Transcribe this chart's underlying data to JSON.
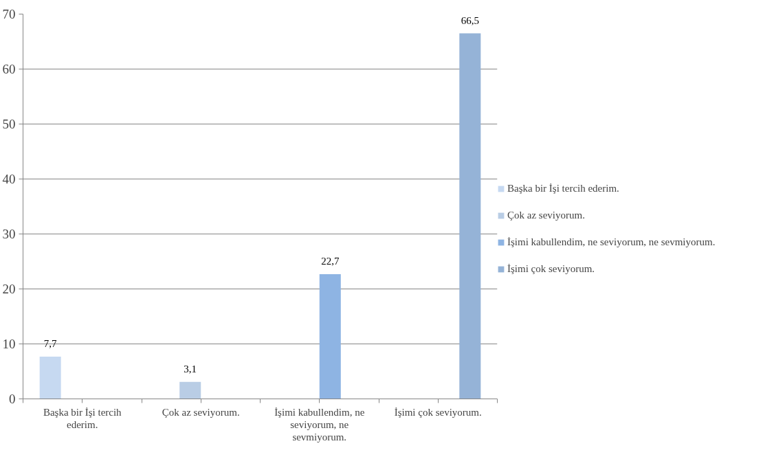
{
  "chart_data": {
    "type": "bar",
    "categories": [
      "Başka bir İşi tercih ederim.",
      "Çok az seviyorum.",
      "İşimi kabullendim, ne seviyorum, ne sevmiyorum.",
      "İşimi çok seviyorum."
    ],
    "series": [
      {
        "name": "Başka bir İşi tercih ederim.",
        "color": "#c6d9f1",
        "values": [
          7.7,
          null,
          null,
          null
        ],
        "value_labels": [
          "7,7",
          null,
          null,
          null
        ]
      },
      {
        "name": "Çok az seviyorum.",
        "color": "#b9cde5",
        "values": [
          null,
          3.1,
          null,
          null
        ],
        "value_labels": [
          null,
          "3,1",
          null,
          null
        ]
      },
      {
        "name": "İşimi kabullendim, ne seviyorum, ne sevmiyorum.",
        "color": "#8eb4e3",
        "values": [
          null,
          null,
          22.7,
          null
        ],
        "value_labels": [
          null,
          null,
          "22,7",
          null
        ]
      },
      {
        "name": "İşimi çok seviyorum.",
        "color": "#95b3d7",
        "values": [
          null,
          null,
          null,
          66.5
        ],
        "value_labels": [
          null,
          null,
          null,
          "66,5"
        ]
      }
    ],
    "ylim": [
      0,
      70
    ],
    "yticks": [
      0,
      10,
      20,
      30,
      40,
      50,
      60,
      70
    ],
    "grid": "y",
    "legend": "right"
  }
}
